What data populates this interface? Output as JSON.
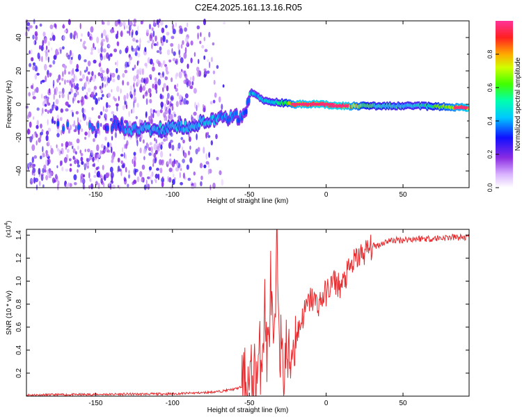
{
  "title": "C2E4.2025.161.13.16.R05",
  "chart_data": [
    {
      "type": "heatmap",
      "panel": "spectrogram",
      "xlabel": "Height of straight line (km)",
      "ylabel": "Frequency (Hz)",
      "xlim": [
        -195,
        93
      ],
      "ylim": [
        -50,
        50
      ],
      "xticks": [
        -150,
        -100,
        -50,
        0,
        50
      ],
      "yticks": [
        -40,
        -20,
        0,
        20,
        40
      ],
      "colorbar": {
        "label": "Normalized spectral amplitude",
        "range": [
          0,
          1
        ],
        "ticks": [
          "0.0",
          "0.2",
          "0.4",
          "0.6",
          "0.8"
        ],
        "colormap": "rainbow (white-violet-blue-cyan-green-yellow-red-magenta)"
      },
      "ridge": [
        {
          "x": -185,
          "f": -14,
          "a": 0.35
        },
        {
          "x": -135,
          "f": -13,
          "a": 0.4
        },
        {
          "x": -125,
          "f": -15,
          "a": 0.45
        },
        {
          "x": -110,
          "f": -15,
          "a": 0.5
        },
        {
          "x": -95,
          "f": -14,
          "a": 0.5
        },
        {
          "x": -80,
          "f": -11,
          "a": 0.5
        },
        {
          "x": -70,
          "f": -9,
          "a": 0.45
        },
        {
          "x": -60,
          "f": -8,
          "a": 0.45
        },
        {
          "x": -53,
          "f": -7,
          "a": 0.4
        },
        {
          "x": -49,
          "f": 8,
          "a": 0.5
        },
        {
          "x": -45,
          "f": 5,
          "a": 0.45
        },
        {
          "x": -40,
          "f": 2,
          "a": 0.5
        },
        {
          "x": -30,
          "f": 1,
          "a": 0.55
        },
        {
          "x": -20,
          "f": 0,
          "a": 0.9
        },
        {
          "x": -5,
          "f": 0,
          "a": 0.95
        },
        {
          "x": 10,
          "f": -1,
          "a": 1.0
        },
        {
          "x": 30,
          "f": -1,
          "a": 0.6
        },
        {
          "x": 60,
          "f": -1,
          "a": 0.55
        },
        {
          "x": 92,
          "f": -2,
          "a": 0.95
        }
      ]
    },
    {
      "type": "line",
      "panel": "snr",
      "xlabel": "Height of straight line (km)",
      "ylabel": "SNR (10 * v/v)",
      "y_multiplier": "(x10",
      "y_multiplier_exp": "4",
      "y_multiplier_close": ")",
      "xlim": [
        -195,
        93
      ],
      "ylim": [
        0,
        1.45
      ],
      "xticks": [
        -150,
        -100,
        -50,
        0,
        50
      ],
      "yticks": [
        0.2,
        0.4,
        0.6,
        0.8,
        1.0,
        1.2,
        1.4
      ],
      "series": [
        {
          "color": "#e8282b",
          "x": [
            -195,
            -150,
            -100,
            -80,
            -70,
            -60,
            -55,
            -50,
            -45,
            -42,
            -40,
            -38,
            -36,
            -34,
            -32,
            -30,
            -28,
            -26,
            -24,
            -22,
            -20,
            -15,
            -10,
            -5,
            0,
            5,
            10,
            15,
            20,
            25,
            30,
            35,
            40,
            50,
            60,
            70,
            80,
            93
          ],
          "y": [
            0.01,
            0.015,
            0.02,
            0.03,
            0.04,
            0.06,
            0.08,
            0.1,
            0.2,
            0.4,
            0.75,
            0.3,
            1.0,
            0.2,
            1.3,
            0.5,
            0.15,
            0.4,
            0.25,
            0.45,
            0.5,
            0.7,
            0.85,
            0.8,
            0.9,
            1.0,
            0.95,
            1.1,
            1.2,
            1.25,
            1.3,
            1.32,
            1.35,
            1.36,
            1.37,
            1.37,
            1.38,
            1.38
          ]
        }
      ]
    }
  ]
}
